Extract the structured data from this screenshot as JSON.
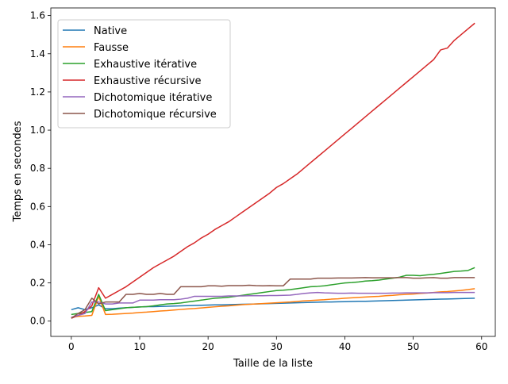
{
  "chart_data": {
    "type": "line",
    "title": "",
    "xlabel": "Taille de la liste",
    "ylabel": "Temps en secondes",
    "xlim": [
      -3,
      62
    ],
    "ylim": [
      -0.08,
      1.64
    ],
    "xticks": [
      0,
      10,
      20,
      30,
      40,
      50,
      60
    ],
    "yticks": [
      0.0,
      0.2,
      0.4,
      0.6,
      0.8,
      1.0,
      1.2,
      1.4,
      1.6
    ],
    "xtick_labels": [
      "0",
      "10",
      "20",
      "30",
      "40",
      "50",
      "60"
    ],
    "ytick_labels": [
      "0.0",
      "0.2",
      "0.4",
      "0.6",
      "0.8",
      "1.0",
      "1.2",
      "1.4",
      "1.6"
    ],
    "grid": false,
    "legend_position": "upper-left",
    "x": [
      0,
      1,
      2,
      3,
      4,
      5,
      6,
      7,
      8,
      9,
      10,
      11,
      12,
      13,
      14,
      15,
      16,
      17,
      18,
      19,
      20,
      21,
      22,
      23,
      24,
      25,
      26,
      27,
      28,
      29,
      30,
      31,
      32,
      33,
      34,
      35,
      36,
      37,
      38,
      39,
      40,
      41,
      42,
      43,
      44,
      45,
      46,
      47,
      48,
      49,
      50,
      51,
      52,
      53,
      54,
      55,
      56,
      57,
      58,
      59
    ],
    "series": [
      {
        "name": "Native",
        "color": "#1f77b4",
        "values": [
          0.06,
          0.07,
          0.06,
          0.07,
          0.085,
          0.065,
          0.065,
          0.068,
          0.07,
          0.072,
          0.074,
          0.076,
          0.076,
          0.077,
          0.078,
          0.079,
          0.08,
          0.081,
          0.082,
          0.083,
          0.084,
          0.085,
          0.085,
          0.086,
          0.087,
          0.088,
          0.089,
          0.09,
          0.091,
          0.092,
          0.093,
          0.094,
          0.095,
          0.096,
          0.097,
          0.098,
          0.099,
          0.1,
          0.1,
          0.101,
          0.102,
          0.103,
          0.104,
          0.104,
          0.105,
          0.106,
          0.107,
          0.108,
          0.109,
          0.11,
          0.111,
          0.112,
          0.113,
          0.114,
          0.115,
          0.116,
          0.117,
          0.118,
          0.119,
          0.12
        ]
      },
      {
        "name": "Fausse",
        "color": "#ff7f0e",
        "values": [
          0.02,
          0.025,
          0.027,
          0.03,
          0.13,
          0.035,
          0.036,
          0.038,
          0.04,
          0.042,
          0.045,
          0.047,
          0.05,
          0.053,
          0.055,
          0.058,
          0.061,
          0.064,
          0.066,
          0.069,
          0.072,
          0.075,
          0.078,
          0.08,
          0.083,
          0.086,
          0.088,
          0.09,
          0.092,
          0.094,
          0.096,
          0.098,
          0.1,
          0.103,
          0.106,
          0.108,
          0.11,
          0.112,
          0.115,
          0.117,
          0.12,
          0.122,
          0.124,
          0.126,
          0.128,
          0.13,
          0.133,
          0.135,
          0.138,
          0.14,
          0.142,
          0.145,
          0.147,
          0.15,
          0.153,
          0.155,
          0.158,
          0.161,
          0.165,
          0.17
        ]
      },
      {
        "name": "Exhaustive itérative",
        "color": "#2ca02c",
        "values": [
          0.035,
          0.04,
          0.045,
          0.05,
          0.14,
          0.055,
          0.06,
          0.065,
          0.07,
          0.072,
          0.074,
          0.076,
          0.08,
          0.085,
          0.09,
          0.092,
          0.095,
          0.1,
          0.105,
          0.11,
          0.115,
          0.12,
          0.122,
          0.125,
          0.13,
          0.135,
          0.14,
          0.145,
          0.15,
          0.155,
          0.16,
          0.162,
          0.165,
          0.17,
          0.175,
          0.18,
          0.182,
          0.185,
          0.19,
          0.195,
          0.2,
          0.202,
          0.205,
          0.21,
          0.212,
          0.215,
          0.22,
          0.225,
          0.23,
          0.24,
          0.24,
          0.238,
          0.242,
          0.245,
          0.25,
          0.255,
          0.26,
          0.262,
          0.265,
          0.28
        ]
      },
      {
        "name": "Exhaustive récursive",
        "color": "#d62728",
        "values": [
          0.015,
          0.03,
          0.05,
          0.08,
          0.175,
          0.12,
          0.14,
          0.16,
          0.18,
          0.205,
          0.23,
          0.255,
          0.28,
          0.3,
          0.32,
          0.34,
          0.365,
          0.39,
          0.41,
          0.435,
          0.455,
          0.48,
          0.5,
          0.52,
          0.545,
          0.57,
          0.595,
          0.62,
          0.645,
          0.67,
          0.7,
          0.72,
          0.745,
          0.77,
          0.8,
          0.83,
          0.86,
          0.89,
          0.92,
          0.95,
          0.98,
          1.01,
          1.04,
          1.07,
          1.1,
          1.13,
          1.16,
          1.19,
          1.22,
          1.25,
          1.28,
          1.31,
          1.34,
          1.37,
          1.42,
          1.43,
          1.47,
          1.5,
          1.53,
          1.56
        ]
      },
      {
        "name": "Dichotomique itérative",
        "color": "#9467bd",
        "values": [
          0.02,
          0.03,
          0.04,
          0.1,
          0.1,
          0.09,
          0.09,
          0.095,
          0.095,
          0.095,
          0.11,
          0.11,
          0.11,
          0.112,
          0.112,
          0.112,
          0.115,
          0.12,
          0.13,
          0.13,
          0.13,
          0.13,
          0.13,
          0.132,
          0.132,
          0.132,
          0.133,
          0.133,
          0.133,
          0.134,
          0.134,
          0.135,
          0.136,
          0.14,
          0.145,
          0.148,
          0.15,
          0.148,
          0.147,
          0.146,
          0.146,
          0.147,
          0.146,
          0.146,
          0.146,
          0.146,
          0.146,
          0.147,
          0.147,
          0.148,
          0.148,
          0.148,
          0.148,
          0.149,
          0.149,
          0.149,
          0.15,
          0.15,
          0.15,
          0.15
        ]
      },
      {
        "name": "Dichotomique récursive",
        "color": "#8c564b",
        "values": [
          0.015,
          0.04,
          0.06,
          0.12,
          0.09,
          0.1,
          0.1,
          0.1,
          0.14,
          0.14,
          0.145,
          0.14,
          0.14,
          0.145,
          0.14,
          0.14,
          0.18,
          0.18,
          0.18,
          0.18,
          0.185,
          0.185,
          0.183,
          0.186,
          0.186,
          0.186,
          0.188,
          0.186,
          0.185,
          0.186,
          0.185,
          0.185,
          0.22,
          0.22,
          0.22,
          0.22,
          0.225,
          0.225,
          0.225,
          0.226,
          0.226,
          0.226,
          0.227,
          0.228,
          0.227,
          0.227,
          0.227,
          0.227,
          0.228,
          0.228,
          0.225,
          0.225,
          0.227,
          0.228,
          0.225,
          0.225,
          0.228,
          0.228,
          0.228,
          0.228
        ]
      }
    ]
  }
}
